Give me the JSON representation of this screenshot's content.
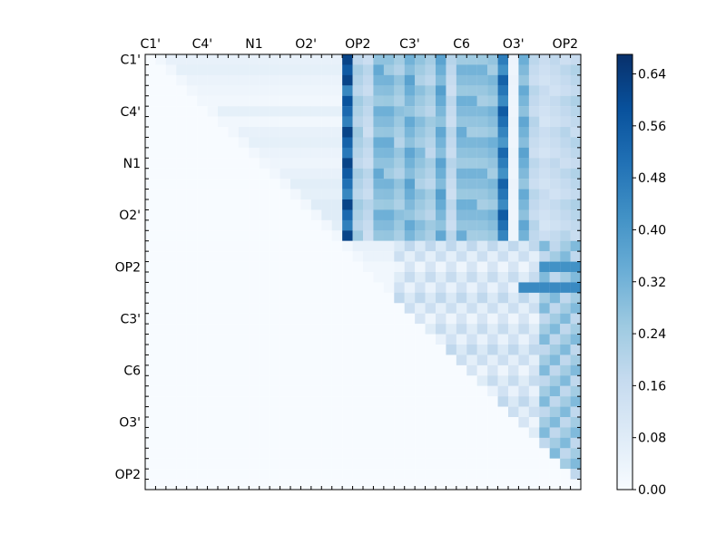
{
  "chart_data": {
    "type": "heatmap",
    "title": "",
    "xlabel": "",
    "ylabel": "",
    "grid": false,
    "colormap": "Blues",
    "size": [
      42,
      42
    ],
    "triangle": "upper",
    "x_tick_labels": [
      "C1'",
      "C4'",
      "N1",
      "O2'",
      "OP2",
      "C3'",
      "C6",
      "O3'",
      "OP2"
    ],
    "x_tick_label_positions": [
      0.5,
      5.5,
      10.5,
      15.5,
      20.5,
      25.5,
      30.5,
      35.5,
      40.5
    ],
    "y_tick_labels": [
      "C1'",
      "C4'",
      "N1",
      "O2'",
      "OP2",
      "C3'",
      "C6",
      "O3'",
      "OP2"
    ],
    "y_tick_label_positions": [
      0.5,
      5.5,
      10.5,
      15.5,
      20.5,
      25.5,
      30.5,
      35.5,
      40.5
    ],
    "colorbar": {
      "min": 0.0,
      "max": 0.67,
      "ticks": [
        "0.00",
        "0.08",
        "0.16",
        "0.24",
        "0.32",
        "0.40",
        "0.48",
        "0.56",
        "0.64"
      ]
    },
    "row_profiles": [
      {
        "row": 0,
        "base": 0.05,
        "start": 2
      },
      {
        "row": 1,
        "base": 0.06,
        "start": 3
      },
      {
        "row": 2,
        "base": 0.04,
        "start": 4
      },
      {
        "row": 3,
        "base": 0.03,
        "start": 5
      },
      {
        "row": 4,
        "base": 0.02,
        "start": 6
      },
      {
        "row": 5,
        "base": 0.06,
        "start": 7
      },
      {
        "row": 6,
        "base": 0.02,
        "start": 8
      },
      {
        "row": 7,
        "base": 0.05,
        "start": 9
      },
      {
        "row": 8,
        "base": 0.06,
        "start": 10
      },
      {
        "row": 9,
        "base": 0.04,
        "start": 11
      },
      {
        "row": 10,
        "base": 0.03,
        "start": 12
      },
      {
        "row": 11,
        "base": 0.05,
        "start": 13
      },
      {
        "row": 12,
        "base": 0.07,
        "start": 14
      },
      {
        "row": 13,
        "base": 0.06,
        "start": 15
      },
      {
        "row": 14,
        "base": 0.08,
        "start": 16
      },
      {
        "row": 15,
        "base": 0.08,
        "start": 17
      },
      {
        "row": 16,
        "base": 0.07,
        "start": 18
      },
      {
        "row": 17,
        "base": 0.06,
        "start": 19
      },
      {
        "row": 18,
        "base": 0.05,
        "start": 20
      },
      {
        "row": 19,
        "base": 0.04,
        "start": 21
      }
    ],
    "strong_columns": [
      {
        "col": 19,
        "value": 0.62
      },
      {
        "col": 20,
        "value": 0.25
      },
      {
        "col": 21,
        "value": 0.2
      },
      {
        "col": 22,
        "value": 0.35
      },
      {
        "col": 23,
        "value": 0.34
      },
      {
        "col": 24,
        "value": 0.28
      },
      {
        "col": 25,
        "value": 0.37
      },
      {
        "col": 26,
        "value": 0.3
      },
      {
        "col": 27,
        "value": 0.25
      },
      {
        "col": 28,
        "value": 0.38
      },
      {
        "col": 29,
        "value": 0.2
      },
      {
        "col": 30,
        "value": 0.34
      },
      {
        "col": 31,
        "value": 0.33
      },
      {
        "col": 32,
        "value": 0.32
      },
      {
        "col": 33,
        "value": 0.33
      },
      {
        "col": 34,
        "value": 0.56
      },
      {
        "col": 35,
        "value": 0.04
      },
      {
        "col": 36,
        "value": 0.37
      },
      {
        "col": 37,
        "value": 0.2
      },
      {
        "col": 38,
        "value": 0.16
      },
      {
        "col": 39,
        "value": 0.18
      },
      {
        "col": 40,
        "value": 0.2
      },
      {
        "col": 41,
        "value": 0.22
      }
    ],
    "lower_right_hot_rows": [
      {
        "row": 20,
        "cols": [
          38,
          39,
          40,
          41
        ],
        "value": 0.42
      },
      {
        "row": 22,
        "cols": [
          36,
          37,
          38,
          39,
          40,
          41
        ],
        "value": 0.44
      },
      {
        "row": 18,
        "cols": [
          18
        ],
        "value": 0.62
      }
    ]
  }
}
